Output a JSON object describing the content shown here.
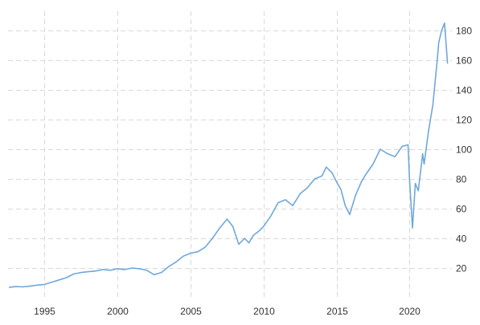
{
  "chart_data": {
    "type": "line",
    "title": "",
    "xlabel": "",
    "ylabel": "",
    "grid": true,
    "legend": "none",
    "line_color": "#6fa8dc",
    "grid_color": "#d9d9d9",
    "xlim": [
      1992.5,
      2022.9
    ],
    "ylim": [
      0,
      193
    ],
    "x_ticks": [
      1995,
      2000,
      2005,
      2010,
      2015,
      2020
    ],
    "x_tick_labels": [
      "1995",
      "2000",
      "2005",
      "2010",
      "2015",
      "2020"
    ],
    "y_ticks": [
      20,
      40,
      60,
      80,
      100,
      120,
      140,
      160,
      180
    ],
    "y_tick_labels": [
      "20",
      "40",
      "60",
      "80",
      "100",
      "120",
      "140",
      "160",
      "180"
    ],
    "series": [
      {
        "x": [
          1992.6,
          1993.0,
          1993.5,
          1994.0,
          1994.5,
          1995.0,
          1995.5,
          1996.0,
          1996.5,
          1997.0,
          1997.5,
          1998.0,
          1998.5,
          1999.0,
          1999.5,
          2000.0,
          2000.5,
          2001.0,
          2001.5,
          2002.0,
          2002.5,
          2003.0,
          2003.5,
          2004.0,
          2004.5,
          2005.0,
          2005.5,
          2006.0,
          2006.5,
          2007.0,
          2007.5,
          2007.9,
          2008.3,
          2008.7,
          2009.0,
          2009.3,
          2009.7,
          2010.0,
          2010.5,
          2011.0,
          2011.5,
          2012.0,
          2012.5,
          2013.0,
          2013.5,
          2014.0,
          2014.3,
          2014.7,
          2015.0,
          2015.3,
          2015.6,
          2015.9,
          2016.3,
          2016.7,
          2017.0,
          2017.5,
          2018.0,
          2018.5,
          2019.0,
          2019.5,
          2019.9,
          2020.0,
          2020.2,
          2020.4,
          2020.6,
          2020.9,
          2021.0,
          2021.3,
          2021.6,
          2021.9,
          2022.0,
          2022.2,
          2022.4,
          2022.6
        ],
        "values": [
          7,
          7.5,
          7.3,
          7.8,
          8.5,
          9,
          10.5,
          12,
          13.5,
          16,
          17,
          17.5,
          18,
          19,
          18.5,
          19.5,
          19,
          20,
          19.5,
          18.5,
          15.5,
          17,
          21,
          24,
          28,
          30,
          31,
          34,
          40,
          47,
          53,
          48,
          36,
          40,
          37,
          42,
          45,
          48,
          55,
          64,
          66,
          62,
          70,
          74,
          80,
          82,
          88,
          84,
          78,
          73,
          62,
          56,
          69,
          78,
          83,
          90,
          100,
          97,
          95,
          102,
          103,
          80,
          47,
          77,
          72,
          97,
          90,
          112,
          130,
          160,
          172,
          180,
          185,
          158
        ]
      }
    ]
  }
}
